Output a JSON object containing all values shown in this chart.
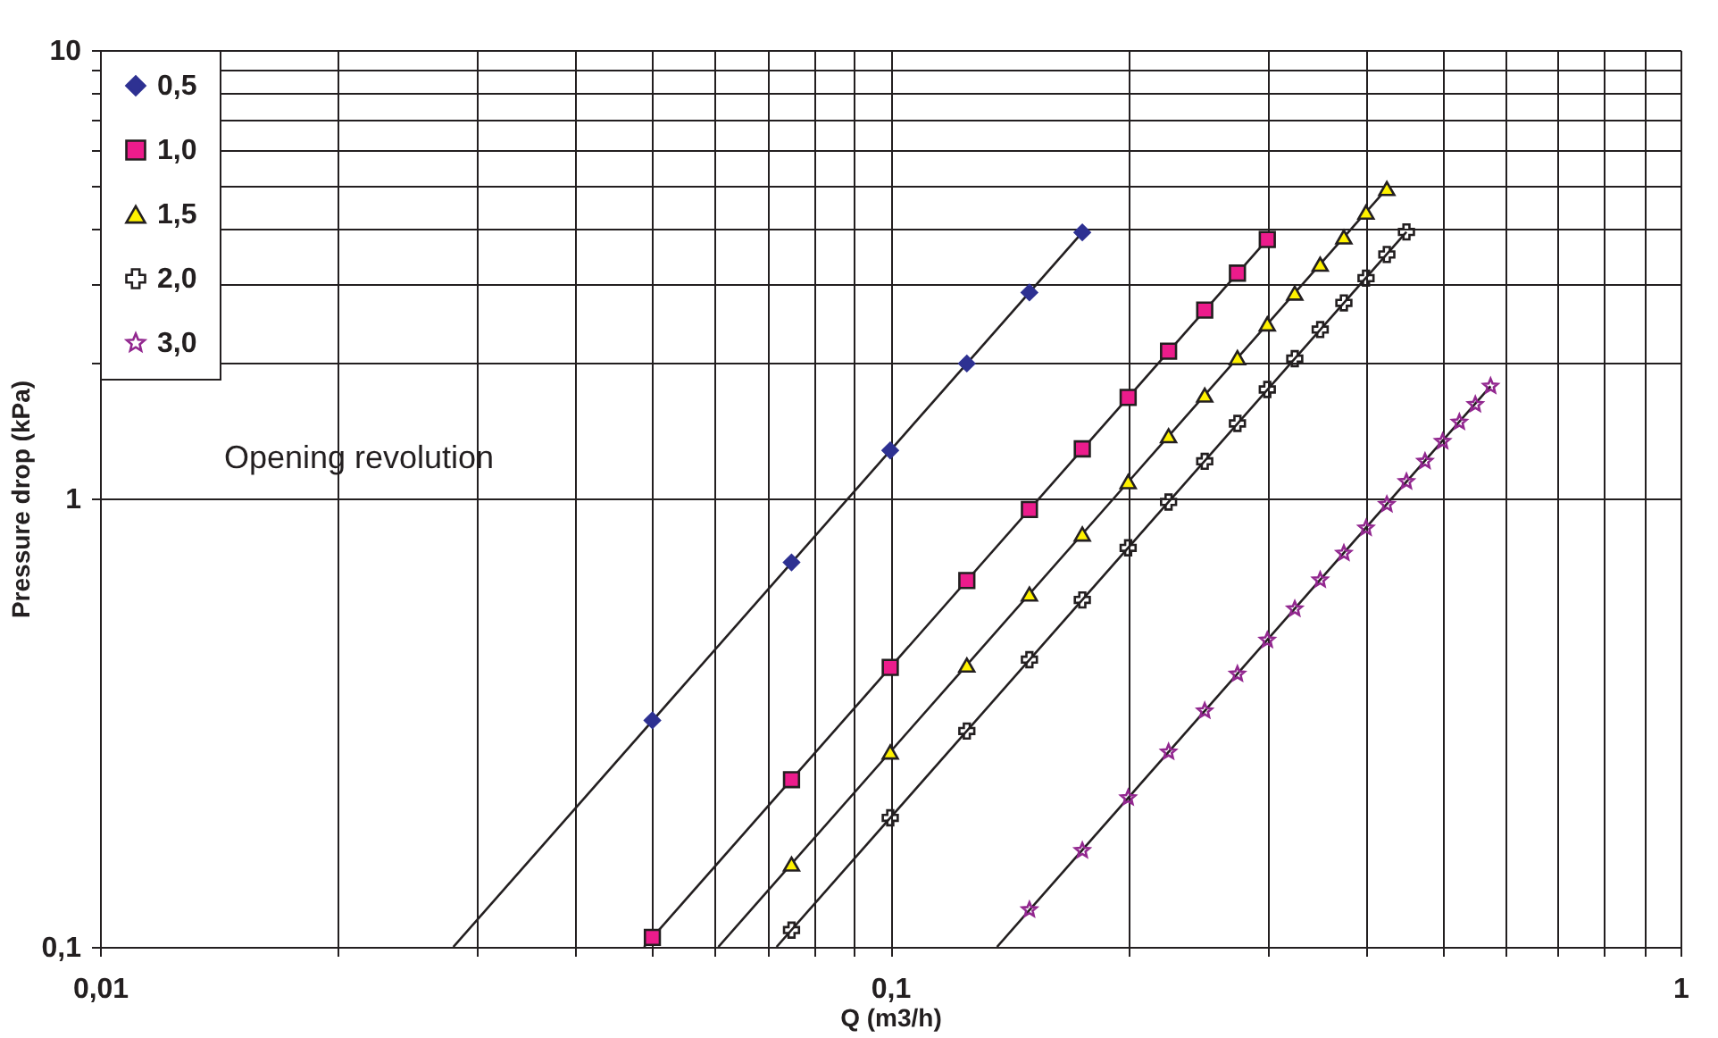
{
  "chart_data": {
    "type": "scatter",
    "xlabel": "Q (m3/h)",
    "ylabel": "Pressure drop  (kPa)",
    "annotations": [
      "Opening revolution"
    ],
    "log": "xy",
    "grid": true,
    "legend": "top left",
    "xlim": [
      0.01,
      1
    ],
    "ylim": [
      0.1,
      10
    ],
    "xticks": [
      {
        "value": 0.01,
        "label": "0,01"
      },
      {
        "value": 0.02,
        "label": null
      },
      {
        "value": 0.03,
        "label": null
      },
      {
        "value": 0.04,
        "label": null
      },
      {
        "value": 0.05,
        "label": null
      },
      {
        "value": 0.06,
        "label": null
      },
      {
        "value": 0.07,
        "label": null
      },
      {
        "value": 0.08,
        "label": null
      },
      {
        "value": 0.09,
        "label": null
      },
      {
        "value": 0.1,
        "label": "0,1"
      },
      {
        "value": 0.2,
        "label": null
      },
      {
        "value": 0.3,
        "label": null
      },
      {
        "value": 0.4,
        "label": null
      },
      {
        "value": 0.5,
        "label": null
      },
      {
        "value": 0.6,
        "label": null
      },
      {
        "value": 0.7,
        "label": null
      },
      {
        "value": 0.8,
        "label": null
      },
      {
        "value": 0.9,
        "label": null
      },
      1
    ],
    "yticks": [
      {
        "value": 0.1,
        "label": "0,1"
      },
      1,
      {
        "value": 2,
        "label": null
      },
      {
        "value": 3,
        "label": null
      },
      {
        "value": 4,
        "label": null
      },
      {
        "value": 5,
        "label": null
      },
      {
        "value": 6,
        "label": null
      },
      {
        "value": 7,
        "label": null
      },
      {
        "value": 8,
        "label": null
      },
      {
        "value": 9,
        "label": null
      },
      10
    ],
    "series": [
      {
        "name": "0,5",
        "marker": "diamond",
        "color": "#2e3192",
        "x": [
          0.05,
          0.075,
          0.1,
          0.125,
          0.15,
          0.175
        ],
        "values": [
          0.32,
          0.72,
          1.28,
          2.0,
          2.88,
          3.92
        ]
      },
      {
        "name": "1,0",
        "marker": "square",
        "color": "#ec1c8c",
        "x": [
          0.05,
          0.075,
          0.1,
          0.125,
          0.15,
          0.175,
          0.2,
          0.225,
          0.25,
          0.275,
          0.3
        ],
        "values": [
          0.105,
          0.236,
          0.42,
          0.656,
          0.945,
          1.29,
          1.68,
          2.13,
          2.63,
          3.18,
          3.78
        ]
      },
      {
        "name": "1,5",
        "marker": "triangle",
        "color": "#fff200",
        "x": [
          0.075,
          0.1,
          0.125,
          0.15,
          0.175,
          0.2,
          0.225,
          0.25,
          0.275,
          0.3,
          0.325,
          0.35,
          0.375,
          0.4,
          0.425
        ],
        "values": [
          0.153,
          0.272,
          0.425,
          0.612,
          0.833,
          1.09,
          1.38,
          1.7,
          2.06,
          2.45,
          2.87,
          3.33,
          3.83,
          4.35,
          4.91
        ]
      },
      {
        "name": "2,0",
        "marker": "cross",
        "color": "#231f20",
        "x": [
          0.075,
          0.1,
          0.125,
          0.15,
          0.175,
          0.2,
          0.225,
          0.25,
          0.275,
          0.3,
          0.325,
          0.35,
          0.375,
          0.4,
          0.425,
          0.45
        ],
        "values": [
          0.109,
          0.194,
          0.303,
          0.437,
          0.594,
          0.776,
          0.982,
          1.21,
          1.47,
          1.75,
          2.05,
          2.38,
          2.73,
          3.1,
          3.5,
          3.93
        ]
      },
      {
        "name": "3,0",
        "marker": "star",
        "color": "#92278f",
        "x": [
          0.15,
          0.175,
          0.2,
          0.225,
          0.25,
          0.275,
          0.3,
          0.325,
          0.35,
          0.375,
          0.4,
          0.425,
          0.45,
          0.475,
          0.5,
          0.525,
          0.55,
          0.575
        ],
        "values": [
          0.121,
          0.164,
          0.215,
          0.272,
          0.336,
          0.406,
          0.483,
          0.567,
          0.658,
          0.755,
          0.859,
          0.97,
          1.09,
          1.21,
          1.34,
          1.48,
          1.62,
          1.78
        ]
      },
      {
        "type": "line",
        "color": "#231f20",
        "x": [
          0.028,
          0.175
        ],
        "values": [
          0.1,
          3.92
        ]
      },
      {
        "type": "line",
        "color": "#231f20",
        "x": [
          0.0488,
          0.3
        ],
        "values": [
          0.1,
          3.78
        ]
      },
      {
        "type": "line",
        "color": "#231f20",
        "x": [
          0.0606,
          0.425
        ],
        "values": [
          0.1,
          4.91
        ]
      },
      {
        "type": "line",
        "color": "#231f20",
        "x": [
          0.0718,
          0.45
        ],
        "values": [
          0.1,
          3.93
        ]
      },
      {
        "type": "line",
        "color": "#231f20",
        "x": [
          0.1365,
          0.575
        ],
        "values": [
          0.1,
          1.78
        ]
      }
    ]
  }
}
